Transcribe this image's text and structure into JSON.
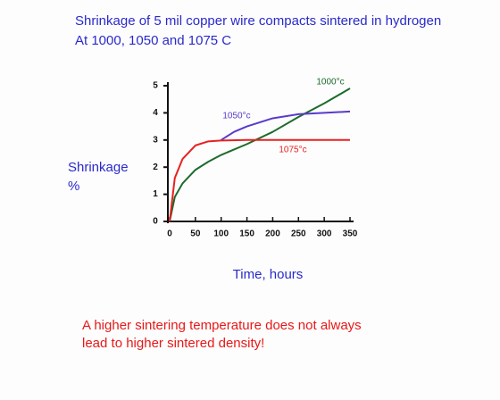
{
  "chart_data": {
    "type": "line",
    "title": [
      "Shrinkage of 5 mil copper wire compacts sintered in hydrogen",
      "At 1000, 1050 and 1075 C"
    ],
    "y_label": [
      "Shrinkage",
      "%"
    ],
    "x_label": "Time, hours",
    "annotation": [
      "A higher sintering temperature does not always",
      "lead to higher sintered density!"
    ],
    "xlim": [
      0,
      350
    ],
    "ylim": [
      0,
      5
    ],
    "xticks": [
      0,
      50,
      100,
      150,
      200,
      250,
      300,
      350
    ],
    "yticks": [
      0,
      1,
      2,
      3,
      4,
      5
    ],
    "series": [
      {
        "name": "1000°c",
        "color": "#1c6b2c",
        "x": [
          0,
          10,
          25,
          50,
          75,
          100,
          150,
          200,
          250,
          300,
          350
        ],
        "values": [
          0,
          0.9,
          1.4,
          1.9,
          2.2,
          2.45,
          2.85,
          3.3,
          3.85,
          4.35,
          4.9
        ]
      },
      {
        "name": "1050°c",
        "color": "#5a3acc",
        "x": [
          100,
          125,
          150,
          200,
          250,
          300,
          350
        ],
        "values": [
          3.0,
          3.3,
          3.5,
          3.8,
          3.95,
          4.0,
          4.05
        ]
      },
      {
        "name": "1075°c",
        "color": "#e82020",
        "x": [
          0,
          10,
          25,
          50,
          75,
          100,
          150,
          200,
          250,
          300,
          350
        ],
        "values": [
          0,
          1.6,
          2.3,
          2.8,
          2.95,
          2.98,
          3.0,
          3.0,
          3.0,
          3.0,
          3.0
        ]
      }
    ]
  }
}
